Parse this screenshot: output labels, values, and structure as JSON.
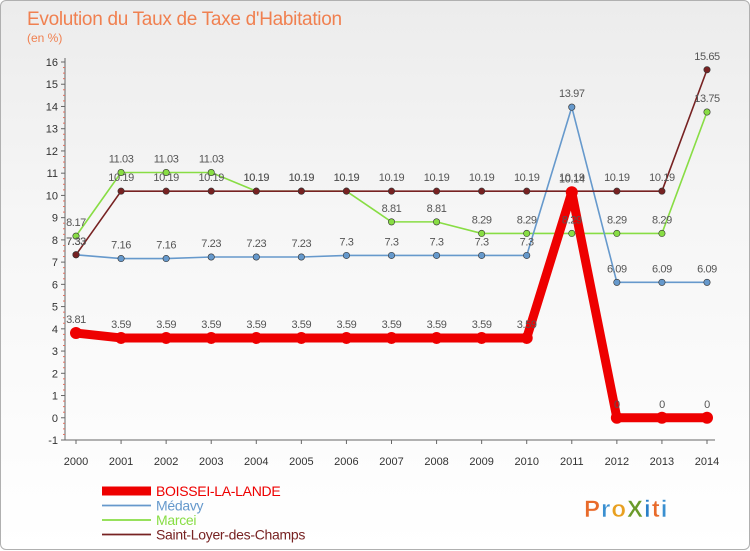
{
  "chart_data": {
    "type": "line",
    "title": "Evolution du Taux de Taxe d'Habitation",
    "subtitle": "(en %)",
    "x": [
      2000,
      2001,
      2002,
      2003,
      2004,
      2005,
      2006,
      2007,
      2008,
      2009,
      2010,
      2011,
      2012,
      2013,
      2014
    ],
    "ylim": [
      -1,
      16
    ],
    "yticks": [
      -1,
      0,
      1,
      2,
      3,
      4,
      5,
      6,
      7,
      8,
      9,
      10,
      11,
      12,
      13,
      14,
      15,
      16
    ],
    "grid": false,
    "legend_position": "bottom-left",
    "series": [
      {
        "name": "BOISSEI-LA-LANDE",
        "color": "#ee0000",
        "values": [
          3.81,
          3.59,
          3.59,
          3.59,
          3.59,
          3.59,
          3.59,
          3.59,
          3.59,
          3.59,
          3.59,
          10.14,
          0,
          0,
          0
        ],
        "labels": [
          "3.81",
          "3.59",
          "3.59",
          "3.59",
          "3.59",
          "3.59",
          "3.59",
          "3.59",
          "3.59",
          "3.59",
          "3.59",
          "10.14",
          "0",
          "0",
          "0"
        ]
      },
      {
        "name": "Médavy",
        "color": "#6699cc",
        "values": [
          7.33,
          7.16,
          7.16,
          7.23,
          7.23,
          7.23,
          7.3,
          7.3,
          7.3,
          7.3,
          7.3,
          13.97,
          6.09,
          6.09,
          6.09
        ],
        "labels": [
          "7.33",
          "7.16",
          "7.16",
          "7.23",
          "7.23",
          "7.23",
          "7.3",
          "7.3",
          "7.3",
          "7.3",
          "7.3",
          "13.97",
          "6.09",
          "6.09",
          "6.09"
        ]
      },
      {
        "name": "Marcei",
        "color": "#88dd44",
        "values": [
          8.17,
          11.03,
          11.03,
          11.03,
          10.19,
          10.19,
          10.19,
          8.81,
          8.81,
          8.29,
          8.29,
          8.29,
          8.29,
          8.29,
          13.75
        ],
        "labels": [
          "8.17",
          "11.03",
          "11.03",
          "11.03",
          "10.19",
          "10.19",
          "10.19",
          "8.81",
          "8.81",
          "8.29",
          "8.29",
          "8.29",
          "8.29",
          "8.29",
          "13.75"
        ]
      },
      {
        "name": "Saint-Loyer-des-Champs",
        "color": "#772222",
        "values": [
          7.33,
          10.19,
          10.19,
          10.19,
          10.19,
          10.19,
          10.19,
          10.19,
          10.19,
          10.19,
          10.19,
          10.19,
          10.19,
          10.19,
          15.65
        ],
        "labels": [
          "7.33",
          "10.19",
          "10.19",
          "10.19",
          "10.19",
          "10.19",
          "10.19",
          "10.19",
          "10.19",
          "10.19",
          "10.19",
          "10.19",
          "10.19",
          "10.19",
          "15.65"
        ]
      }
    ]
  },
  "logo": {
    "text": "ProXiti"
  },
  "colors": {
    "title": "#f08050",
    "axis": "#666666"
  }
}
